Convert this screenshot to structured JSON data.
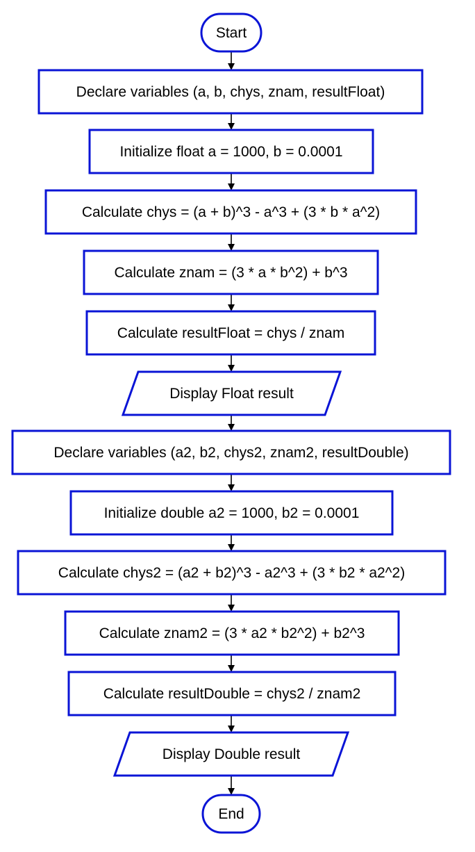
{
  "diagram": {
    "type": "flowchart",
    "colors": {
      "node_border": "#0a14d6",
      "node_fill": "#ffffff",
      "text": "#000000",
      "edge": "#000000"
    },
    "nodes": [
      {
        "id": "start",
        "shape": "terminator",
        "label": "Start"
      },
      {
        "id": "declare-float-vars",
        "shape": "process",
        "label": "Declare variables (a, b, chys, znam, resultFloat)"
      },
      {
        "id": "init-float",
        "shape": "process",
        "label": "Initialize float a = 1000, b = 0.0001"
      },
      {
        "id": "calc-chys",
        "shape": "process",
        "label": "Calculate chys = (a + b)^3 - a^3 + (3 * b * a^2)"
      },
      {
        "id": "calc-znam",
        "shape": "process",
        "label": "Calculate znam = (3 * a * b^2) + b^3"
      },
      {
        "id": "calc-result-float",
        "shape": "process",
        "label": "Calculate resultFloat = chys / znam"
      },
      {
        "id": "display-float",
        "shape": "io",
        "label": "Display Float result"
      },
      {
        "id": "declare-double-vars",
        "shape": "process",
        "label": "Declare variables (a2, b2, chys2, znam2, resultDouble)"
      },
      {
        "id": "init-double",
        "shape": "process",
        "label": "Initialize double a2 = 1000, b2 = 0.0001"
      },
      {
        "id": "calc-chys2",
        "shape": "process",
        "label": "Calculate chys2 = (a2 + b2)^3 - a2^3 + (3 * b2 * a2^2)"
      },
      {
        "id": "calc-znam2",
        "shape": "process",
        "label": "Calculate znam2 = (3 * a2 * b2^2) + b2^3"
      },
      {
        "id": "calc-result-double",
        "shape": "process",
        "label": "Calculate resultDouble = chys2 / znam2"
      },
      {
        "id": "display-double",
        "shape": "io",
        "label": "Display Double result"
      },
      {
        "id": "end",
        "shape": "terminator",
        "label": "End"
      }
    ],
    "edges": [
      {
        "from": "start",
        "to": "declare-float-vars"
      },
      {
        "from": "declare-float-vars",
        "to": "init-float"
      },
      {
        "from": "init-float",
        "to": "calc-chys"
      },
      {
        "from": "calc-chys",
        "to": "calc-znam"
      },
      {
        "from": "calc-znam",
        "to": "calc-result-float"
      },
      {
        "from": "calc-result-float",
        "to": "display-float"
      },
      {
        "from": "display-float",
        "to": "declare-double-vars"
      },
      {
        "from": "declare-double-vars",
        "to": "init-double"
      },
      {
        "from": "init-double",
        "to": "calc-chys2"
      },
      {
        "from": "calc-chys2",
        "to": "calc-znam2"
      },
      {
        "from": "calc-znam2",
        "to": "calc-result-double"
      },
      {
        "from": "calc-result-double",
        "to": "display-double"
      },
      {
        "from": "display-double",
        "to": "end"
      }
    ]
  }
}
